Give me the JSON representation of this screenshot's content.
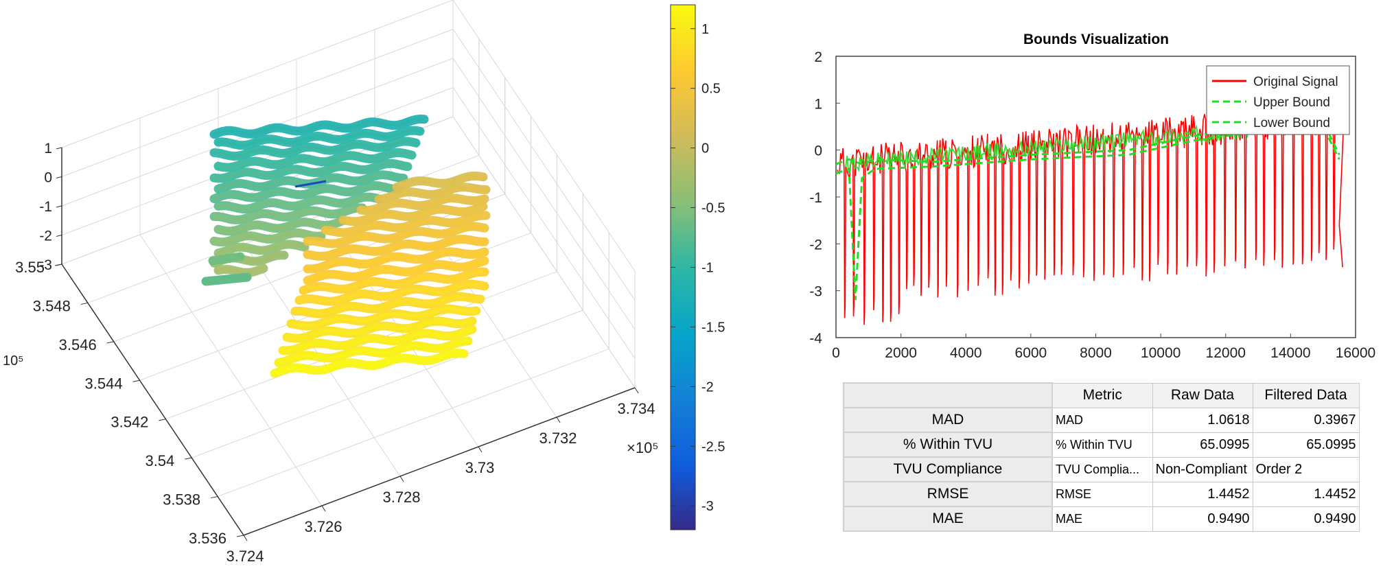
{
  "chart_data": [
    {
      "type": "scatter3d",
      "title": "",
      "x_axis": {
        "ticks": [
          "3.724",
          "3.726",
          "3.728",
          "3.73",
          "3.732",
          "3.734"
        ],
        "multiplier": "×10⁵"
      },
      "y_axis": {
        "ticks": [
          "3.536",
          "3.538",
          "3.54",
          "3.542",
          "3.544",
          "3.546",
          "3.548",
          "3.55"
        ],
        "multiplier": "10⁵"
      },
      "z_axis": {
        "ticks": [
          "1",
          "0",
          "-1",
          "-2",
          "-3"
        ]
      },
      "clusters": [
        {
          "name": "upper-left swath",
          "value_range": [
            -1.2,
            -0.3
          ]
        },
        {
          "name": "lower-right swath",
          "value_range": [
            0.0,
            1.1
          ]
        },
        {
          "name": "low outlier segment",
          "value_range": [
            -3.2,
            -2.6
          ]
        }
      ],
      "colorbar": {
        "ticks": [
          "1",
          "0.5",
          "0",
          "-0.5",
          "-1",
          "-1.5",
          "-2",
          "-2.5",
          "-3"
        ],
        "range": [
          -3.2,
          1.2
        ],
        "colormap": "parula"
      }
    },
    {
      "type": "line",
      "title": "Bounds Visualization",
      "xlim": [
        0,
        16000
      ],
      "ylim": [
        -4,
        2
      ],
      "x_ticks": [
        "0",
        "2000",
        "4000",
        "6000",
        "8000",
        "10000",
        "12000",
        "14000",
        "16000"
      ],
      "y_ticks": [
        "2",
        "1",
        "0",
        "-1",
        "-2",
        "-3",
        "-4"
      ],
      "series": [
        {
          "name": "Original Signal",
          "color": "#ff0000",
          "style": "solid",
          "description": "oscillates between a rising upper envelope (-0.2 to 0.9) and dips down to about -3.7 .. -2.4"
        },
        {
          "name": "Upper Bound",
          "color": "#22dd22",
          "style": "dashed",
          "points": [
            [
              0,
              -0.3
            ],
            [
              400,
              -0.2
            ],
            [
              800,
              -0.3
            ],
            [
              1200,
              -0.2
            ],
            [
              3000,
              -0.25
            ],
            [
              6000,
              -0.1
            ],
            [
              9000,
              0.0
            ],
            [
              11000,
              0.3
            ],
            [
              13000,
              0.5
            ],
            [
              15000,
              0.6
            ],
            [
              15500,
              -0.1
            ]
          ]
        },
        {
          "name": "Lower Bound",
          "color": "#22dd22",
          "style": "dashed",
          "points": [
            [
              0,
              -0.5
            ],
            [
              400,
              -0.4
            ],
            [
              600,
              -3.2
            ],
            [
              800,
              -0.6
            ],
            [
              1200,
              -0.4
            ],
            [
              3000,
              -0.35
            ],
            [
              6000,
              -0.2
            ],
            [
              9000,
              -0.1
            ],
            [
              11000,
              0.2
            ],
            [
              13000,
              0.4
            ],
            [
              15000,
              0.5
            ],
            [
              15500,
              -0.2
            ]
          ]
        }
      ],
      "legend": {
        "location": "top-right",
        "entries": [
          "Original Signal",
          "Upper Bound",
          "Lower Bound"
        ]
      }
    }
  ],
  "table": {
    "headers": [
      "",
      "Metric",
      "Raw Data",
      "Filtered Data"
    ],
    "rows": [
      {
        "label": "MAD",
        "metric": "MAD",
        "raw": "1.0618",
        "filtered": "0.3967"
      },
      {
        "label": "% Within TVU",
        "metric": "% Within TVU",
        "raw": "65.0995",
        "filtered": "65.0995"
      },
      {
        "label": "TVU Compliance",
        "metric": "TVU Complia...",
        "raw": "Non-Compliant",
        "filtered": "Order 2"
      },
      {
        "label": "RMSE",
        "metric": "RMSE",
        "raw": "1.4452",
        "filtered": "1.4452"
      },
      {
        "label": "MAE",
        "metric": "MAE",
        "raw": "0.9490",
        "filtered": "0.9490"
      }
    ]
  }
}
